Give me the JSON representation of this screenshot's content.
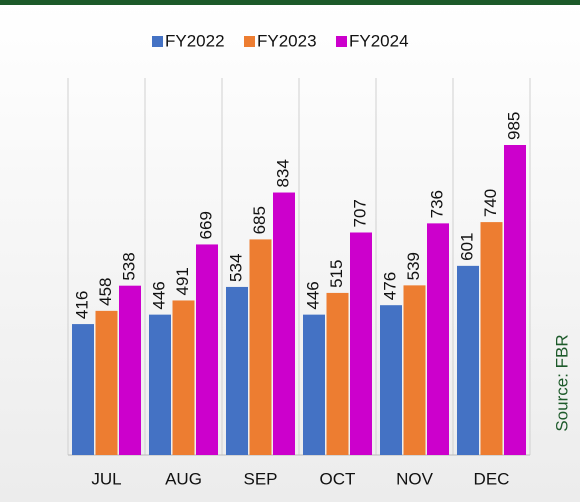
{
  "chart_data": {
    "type": "bar",
    "categories": [
      "JUL",
      "AUG",
      "SEP",
      "OCT",
      "NOV",
      "DEC"
    ],
    "series": [
      {
        "name": "FY2022",
        "color": "#4472c4",
        "values": [
          416,
          446,
          534,
          446,
          476,
          601
        ]
      },
      {
        "name": "FY2023",
        "color": "#ed7d31",
        "values": [
          458,
          491,
          685,
          515,
          539,
          740
        ]
      },
      {
        "name": "FY2024",
        "color": "#cc00cc",
        "values": [
          538,
          669,
          834,
          707,
          736,
          985
        ]
      }
    ],
    "legend": "top",
    "source": "Source: FBR"
  }
}
